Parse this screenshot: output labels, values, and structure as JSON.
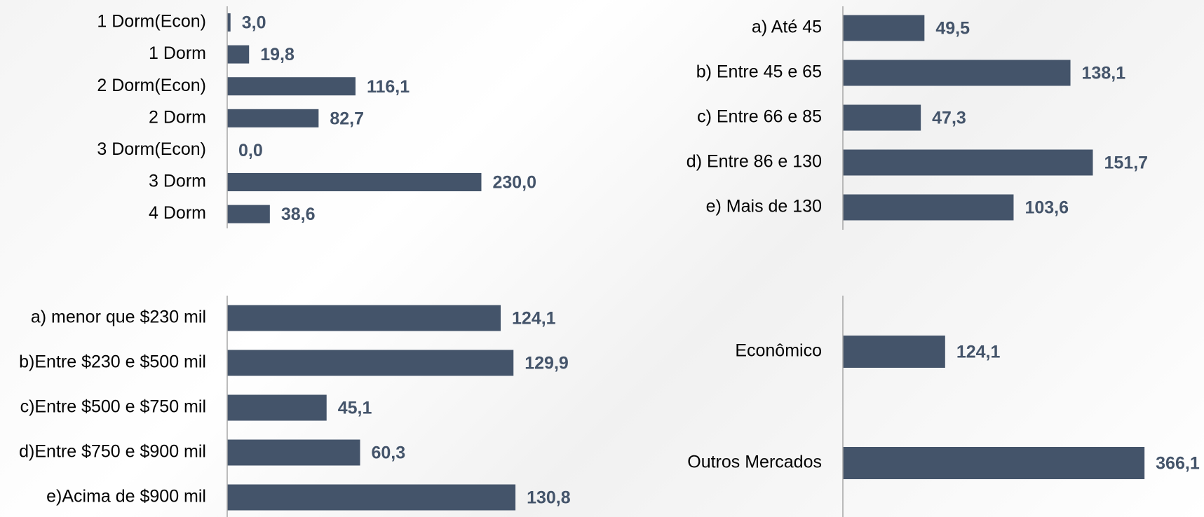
{
  "chart_data": [
    {
      "type": "bar",
      "orientation": "horizontal",
      "color": "#44546a",
      "xlim": [
        0,
        250
      ],
      "categories": [
        "1 Dorm(Econ)",
        "1 Dorm",
        "2 Dorm(Econ)",
        "2 Dorm",
        "3 Dorm(Econ)",
        "3 Dorm",
        "4 Dorm"
      ],
      "values": [
        3.0,
        19.8,
        116.1,
        82.7,
        0.0,
        230.0,
        38.6
      ],
      "value_labels": [
        "3,0",
        "19,8",
        "116,1",
        "82,7",
        "0,0",
        "230,0",
        "38,6"
      ]
    },
    {
      "type": "bar",
      "orientation": "horizontal",
      "color": "#44546a",
      "xlim": [
        0,
        160
      ],
      "categories": [
        "a) Até 45",
        "b) Entre 45 e 65",
        "c) Entre 66 e 85",
        "d) Entre 86 e 130",
        "e) Mais de 130"
      ],
      "values": [
        49.5,
        138.1,
        47.3,
        151.7,
        103.6
      ],
      "value_labels": [
        "49,5",
        "138,1",
        "47,3",
        "151,7",
        "103,6"
      ]
    },
    {
      "type": "bar",
      "orientation": "horizontal",
      "color": "#44546a",
      "xlim": [
        0,
        140
      ],
      "categories": [
        "a) menor que $230 mil",
        "b)Entre $230 e $500 mil",
        "c)Entre $500 e $750 mil",
        "d)Entre $750 e $900 mil",
        "e)Acima de $900 mil"
      ],
      "values": [
        124.1,
        129.9,
        45.1,
        60.3,
        130.8
      ],
      "value_labels": [
        "124,1",
        "129,9",
        "45,1",
        "60,3",
        "130,8"
      ]
    },
    {
      "type": "bar",
      "orientation": "horizontal",
      "color": "#44546a",
      "xlim": [
        0,
        400
      ],
      "categories": [
        "Econômico",
        "Outros Mercados"
      ],
      "values": [
        124.1,
        366.1
      ],
      "value_labels": [
        "124,1",
        "366,1"
      ]
    }
  ]
}
